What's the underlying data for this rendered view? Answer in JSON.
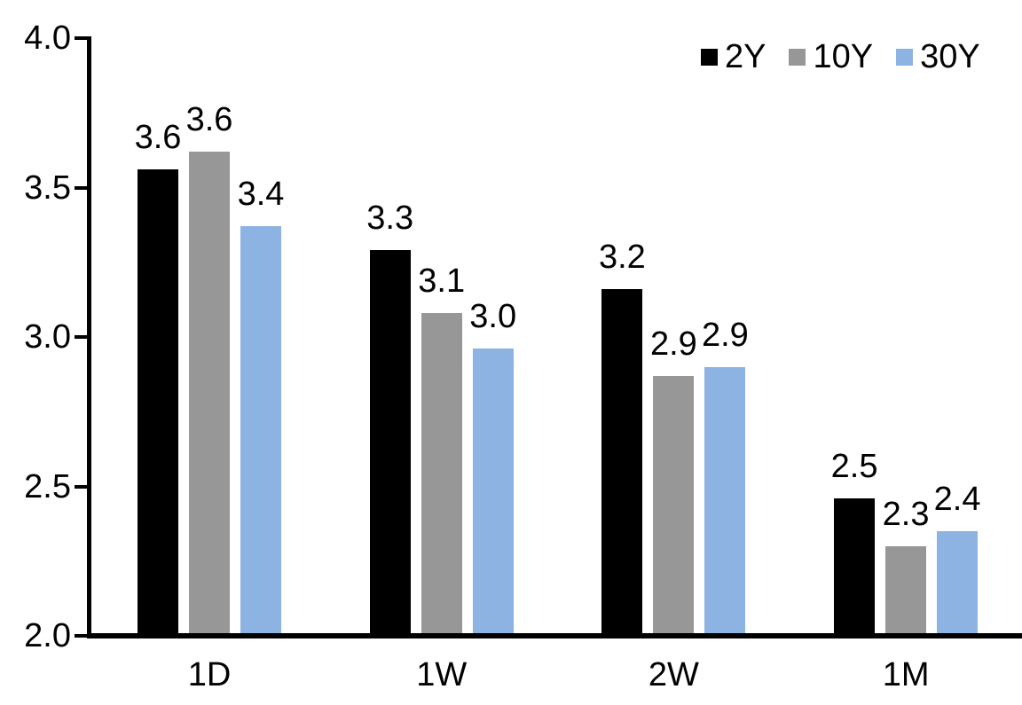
{
  "chart_data": {
    "type": "bar",
    "title": "",
    "xlabel": "",
    "ylabel": "",
    "categories": [
      "1D",
      "1W",
      "2W",
      "1M"
    ],
    "series": [
      {
        "name": "2Y",
        "color": "#000000",
        "values": [
          3.56,
          3.29,
          3.16,
          2.46
        ],
        "labels": [
          "3.6",
          "3.3",
          "3.2",
          "2.5"
        ]
      },
      {
        "name": "10Y",
        "color": "#979797",
        "values": [
          3.62,
          3.08,
          2.87,
          2.3
        ],
        "labels": [
          "3.6",
          "3.1",
          "2.9",
          "2.3"
        ]
      },
      {
        "name": "30Y",
        "color": "#8DB3E2",
        "values": [
          3.37,
          2.96,
          2.9,
          2.35
        ],
        "labels": [
          "3.4",
          "3.0",
          "2.9",
          "2.4"
        ]
      }
    ],
    "ylim": [
      2.0,
      4.0
    ],
    "ytick_values": [
      2.0,
      2.5,
      3.0,
      3.5,
      4.0
    ],
    "ytick_labels": [
      "2.0",
      "2.5",
      "3.0",
      "3.5",
      "4.0"
    ],
    "grid": false,
    "legend_position": "top-right",
    "axis_color": "#000000",
    "background_color": "#ffffff"
  }
}
